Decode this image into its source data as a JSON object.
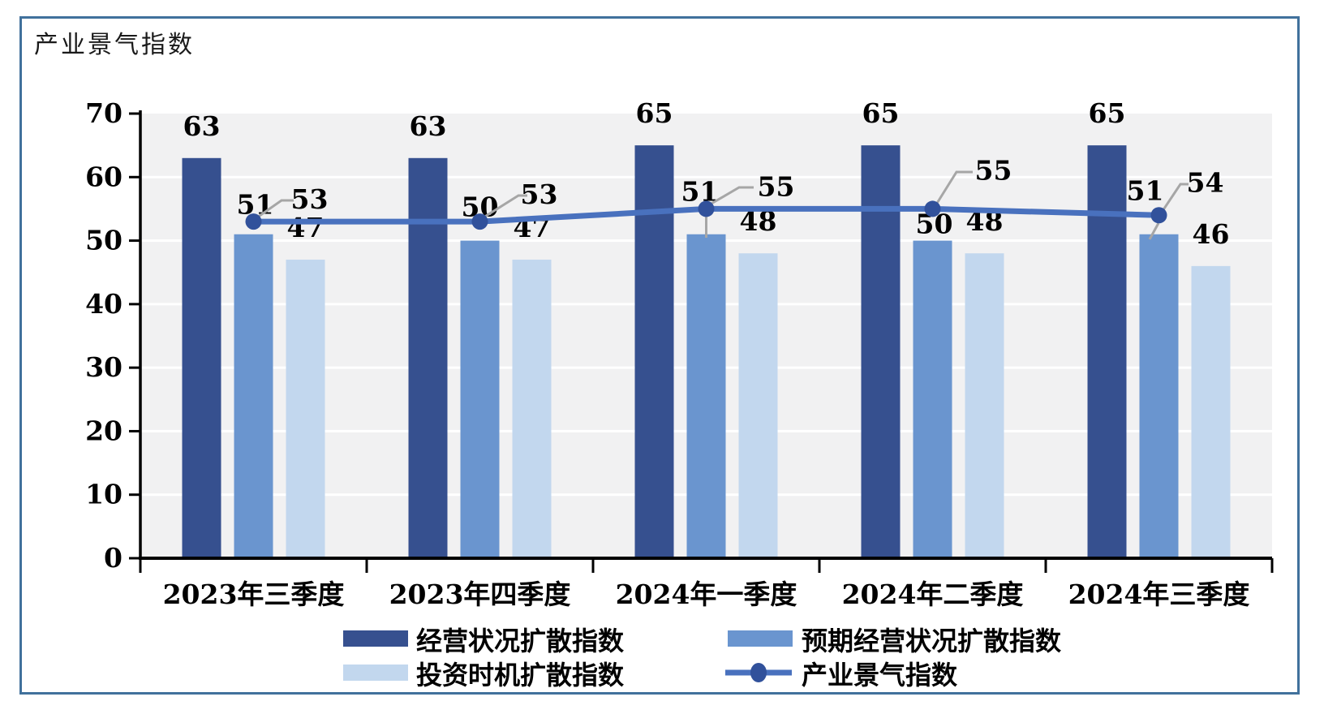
{
  "title": "产业景气指数",
  "chart_data": {
    "type": "combo-bar-line",
    "title": "产业景气指数",
    "categories": [
      "2023年三季度",
      "2023年四季度",
      "2024年一季度",
      "2024年二季度",
      "2024年三季度"
    ],
    "series": [
      {
        "name": "经营状况扩散指数",
        "chart_type": "bar",
        "color": "#36508F",
        "values": [
          63,
          63,
          65,
          65,
          65
        ]
      },
      {
        "name": "预期经营状况扩散指数",
        "chart_type": "bar",
        "color": "#6A95CF",
        "values": [
          51,
          50,
          51,
          50,
          51
        ]
      },
      {
        "name": "投资时机扩散指数",
        "chart_type": "bar",
        "color": "#C2D7EE",
        "values": [
          47,
          47,
          48,
          48,
          46
        ]
      },
      {
        "name": "产业景气指数",
        "chart_type": "line",
        "color": "#4971BE",
        "marker_color": "#31519B",
        "values": [
          53,
          53,
          55,
          55,
          54
        ]
      }
    ],
    "ylim": [
      0,
      70
    ],
    "yticks": [
      0,
      10,
      20,
      30,
      40,
      50,
      60,
      70
    ],
    "grid": "horizontal",
    "legend_position": "bottom",
    "colors": {
      "plot_background": "#F1F1F2",
      "gridline": "#FFFFFF",
      "axis": "#000000",
      "data_label": "#000000",
      "leader_line": "#A6A6A6",
      "frame_border": "#41719C"
    }
  }
}
